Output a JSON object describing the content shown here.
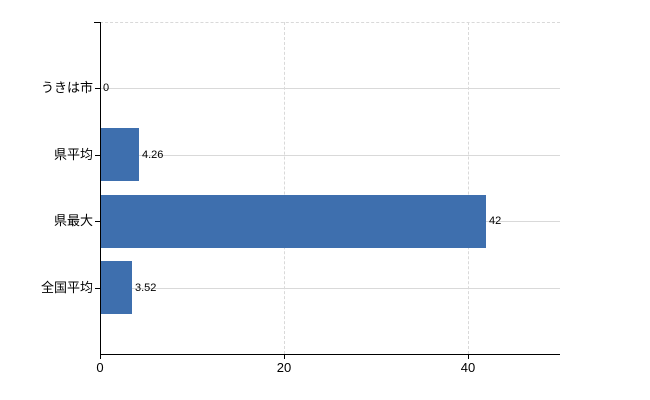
{
  "chart_data": {
    "type": "bar",
    "orientation": "horizontal",
    "title": "",
    "xlabel": "",
    "ylabel": "",
    "categories": [
      "うきは市",
      "県平均",
      "県最大",
      "全国平均"
    ],
    "values": [
      0,
      4.26,
      42,
      3.52
    ],
    "value_labels": [
      "0",
      "4.26",
      "42",
      "3.52"
    ],
    "x_ticks": [
      0,
      20,
      40
    ],
    "x_tick_labels": [
      "0",
      "20",
      "40"
    ],
    "xlim": [
      0,
      50
    ],
    "grid": "on",
    "legend": "none",
    "colors": {
      "bar": "#3e6fae",
      "gridline": "#d9d9d9",
      "axis": "#000000",
      "text": "#000000",
      "background": "#ffffff"
    }
  }
}
